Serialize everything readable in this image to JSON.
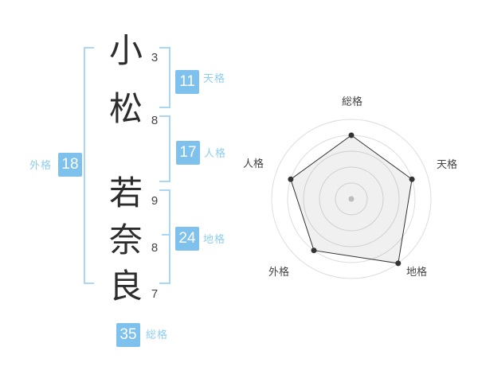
{
  "colors": {
    "badge_blue": "#7dc1ec",
    "label_blue": "#8ecdf2",
    "bracket_blue": "#a9d7f4",
    "text_dark": "#2d2d2d",
    "grid_gray": "#dddddd",
    "series_dark": "#333333"
  },
  "name": {
    "chars": [
      {
        "char": "小",
        "strokes": "3"
      },
      {
        "char": "松",
        "strokes": "8"
      },
      {
        "char": "若",
        "strokes": "9"
      },
      {
        "char": "奈",
        "strokes": "8"
      },
      {
        "char": "良",
        "strokes": "7"
      }
    ]
  },
  "kaku": {
    "tenkaku": {
      "value": "11",
      "label": "天格"
    },
    "jinkaku": {
      "value": "17",
      "label": "人格"
    },
    "chikaku": {
      "value": "24",
      "label": "地格"
    },
    "gaikaku": {
      "value": "18",
      "label": "外格"
    },
    "soukaku": {
      "value": "35",
      "label": "総格"
    }
  },
  "chart_data": {
    "type": "radar",
    "categories": [
      "総格",
      "天格",
      "地格",
      "外格",
      "人格"
    ],
    "values": [
      80,
      80,
      100,
      80,
      80
    ],
    "axis_range": [
      0,
      100
    ],
    "ring_count": 5,
    "grid": true,
    "legend": false,
    "layout": "pentagon, first axis at top, clockwise; values estimated from 5 evenly spaced gridline rings"
  }
}
